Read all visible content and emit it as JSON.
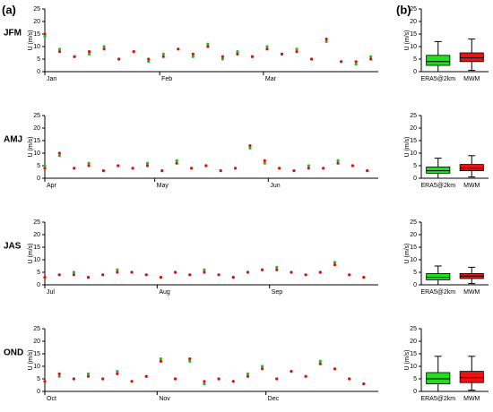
{
  "labels": {
    "a": "(a)",
    "b": "(b)"
  },
  "chart_data": [
    {
      "type": "scatter",
      "title": "JFM",
      "ylabel": "U (m/s)",
      "xlim": [
        0,
        90
      ],
      "ylim": [
        0,
        25
      ],
      "yticks": [
        0,
        5,
        10,
        15,
        20,
        25
      ],
      "xticks": [
        {
          "value": 0,
          "label": "Jan"
        },
        {
          "value": 31,
          "label": "Feb"
        },
        {
          "value": 59,
          "label": "Mar"
        }
      ],
      "x": [
        0,
        4,
        8,
        12,
        16,
        20,
        24,
        28,
        32,
        36,
        40,
        44,
        48,
        52,
        56,
        60,
        64,
        68,
        72,
        76,
        80,
        84,
        88
      ],
      "series": [
        {
          "color": "#22bb22",
          "values": [
            14,
            9,
            6,
            7,
            10,
            5,
            8,
            4,
            7,
            9,
            6,
            11,
            5,
            8,
            6,
            10,
            7,
            9,
            5,
            12,
            4,
            3,
            6
          ]
        },
        {
          "color": "#dd1111",
          "values": [
            15,
            8,
            6,
            8,
            9,
            5,
            8,
            5,
            6,
            9,
            7,
            10,
            6,
            7,
            6,
            9,
            7,
            8,
            5,
            13,
            4,
            4,
            5
          ]
        }
      ]
    },
    {
      "type": "box",
      "ylabel": "U (m/s)",
      "ylim": [
        0,
        25
      ],
      "yticks": [
        0,
        5,
        10,
        15,
        20,
        25
      ],
      "categories": [
        "ERA5@2km",
        "MWM"
      ],
      "series": [
        {
          "color": "#22dd22",
          "min": 0,
          "q1": 2.5,
          "median": 4,
          "q3": 6.5,
          "max": 12
        },
        {
          "color": "#ee1111",
          "min": 0.5,
          "q1": 4,
          "median": 5.5,
          "q3": 7.5,
          "max": 13
        }
      ]
    },
    {
      "type": "scatter",
      "title": "AMJ",
      "ylabel": "U (m/s)",
      "xlim": [
        0,
        91
      ],
      "ylim": [
        0,
        25
      ],
      "yticks": [
        0,
        5,
        10,
        15,
        20,
        25
      ],
      "xticks": [
        {
          "value": 0,
          "label": "Apr"
        },
        {
          "value": 30,
          "label": "May"
        },
        {
          "value": 61,
          "label": "Jun"
        }
      ],
      "x": [
        0,
        4,
        8,
        12,
        16,
        20,
        24,
        28,
        32,
        36,
        40,
        44,
        48,
        52,
        56,
        60,
        64,
        68,
        72,
        76,
        80,
        84,
        88
      ],
      "series": [
        {
          "color": "#22bb22",
          "values": [
            5,
            9,
            4,
            6,
            3,
            5,
            4,
            6,
            3,
            7,
            4,
            5,
            3,
            4,
            12,
            6,
            4,
            3,
            5,
            4,
            7,
            5,
            3
          ]
        },
        {
          "color": "#dd1111",
          "values": [
            4,
            10,
            4,
            5,
            3,
            5,
            4,
            5,
            3,
            6,
            4,
            5,
            3,
            4,
            13,
            7,
            4,
            3,
            4,
            4,
            6,
            5,
            3
          ]
        }
      ]
    },
    {
      "type": "box",
      "ylabel": "U (m/s)",
      "ylim": [
        0,
        25
      ],
      "yticks": [
        0,
        5,
        10,
        15,
        20,
        25
      ],
      "categories": [
        "ERA5@2km",
        "MWM"
      ],
      "series": [
        {
          "color": "#22dd22",
          "min": 0,
          "q1": 2,
          "median": 3,
          "q3": 4.5,
          "max": 8
        },
        {
          "color": "#ee1111",
          "min": 0.5,
          "q1": 3,
          "median": 4,
          "q3": 5.5,
          "max": 9
        }
      ]
    },
    {
      "type": "scatter",
      "title": "JAS",
      "ylabel": "U (m/s)",
      "xlim": [
        0,
        92
      ],
      "ylim": [
        0,
        25
      ],
      "yticks": [
        0,
        5,
        10,
        15,
        20,
        25
      ],
      "xticks": [
        {
          "value": 0,
          "label": "Jul"
        },
        {
          "value": 31,
          "label": "Aug"
        },
        {
          "value": 62,
          "label": "Sep"
        }
      ],
      "x": [
        0,
        4,
        8,
        12,
        16,
        20,
        24,
        28,
        32,
        36,
        40,
        44,
        48,
        52,
        56,
        60,
        64,
        68,
        72,
        76,
        80,
        84,
        88
      ],
      "series": [
        {
          "color": "#22bb22",
          "values": [
            3,
            4,
            5,
            3,
            4,
            6,
            5,
            4,
            3,
            5,
            4,
            6,
            4,
            3,
            5,
            6,
            7,
            5,
            4,
            5,
            9,
            4,
            3
          ]
        },
        {
          "color": "#dd1111",
          "values": [
            3,
            4,
            4,
            3,
            4,
            5,
            5,
            4,
            3,
            5,
            4,
            5,
            4,
            3,
            5,
            6,
            6,
            5,
            4,
            5,
            8,
            4,
            3
          ]
        }
      ]
    },
    {
      "type": "box",
      "ylabel": "U (m/s)",
      "ylim": [
        0,
        25
      ],
      "yticks": [
        0,
        5,
        10,
        15,
        20,
        25
      ],
      "categories": [
        "ERA5@2km",
        "MWM"
      ],
      "series": [
        {
          "color": "#22dd22",
          "min": 0,
          "q1": 2,
          "median": 3,
          "q3": 4.5,
          "max": 7.5
        },
        {
          "color": "#ee1111",
          "min": 0.5,
          "q1": 2.5,
          "median": 3.5,
          "q3": 4.5,
          "max": 7
        }
      ]
    },
    {
      "type": "scatter",
      "title": "OND",
      "ylabel": "U (m/s)",
      "xlim": [
        0,
        92
      ],
      "ylim": [
        0,
        25
      ],
      "yticks": [
        0,
        5,
        10,
        15,
        20,
        25
      ],
      "xticks": [
        {
          "value": 0,
          "label": "Oct"
        },
        {
          "value": 31,
          "label": "Nov"
        },
        {
          "value": 61,
          "label": "Dec"
        }
      ],
      "x": [
        0,
        4,
        8,
        12,
        16,
        20,
        24,
        28,
        32,
        36,
        40,
        44,
        48,
        52,
        56,
        60,
        64,
        68,
        72,
        76,
        80,
        84,
        88
      ],
      "series": [
        {
          "color": "#22bb22",
          "values": [
            4,
            6,
            5,
            7,
            5,
            8,
            4,
            6,
            13,
            5,
            12,
            3,
            5,
            4,
            7,
            10,
            5,
            8,
            6,
            12,
            9,
            5,
            3
          ]
        },
        {
          "color": "#dd1111",
          "values": [
            4,
            7,
            5,
            6,
            5,
            7,
            4,
            6,
            12,
            5,
            13,
            4,
            5,
            4,
            6,
            9,
            5,
            8,
            6,
            11,
            9,
            5,
            3
          ]
        }
      ]
    },
    {
      "type": "box",
      "ylabel": "U (m/s)",
      "ylim": [
        0,
        25
      ],
      "yticks": [
        0,
        5,
        10,
        15,
        20,
        25
      ],
      "categories": [
        "ERA5@2km",
        "MWM"
      ],
      "series": [
        {
          "color": "#22dd22",
          "min": 0,
          "q1": 3,
          "median": 5,
          "q3": 7.5,
          "max": 14
        },
        {
          "color": "#ee1111",
          "min": 0.5,
          "q1": 3.5,
          "median": 5.5,
          "q3": 8,
          "max": 14
        }
      ]
    }
  ]
}
